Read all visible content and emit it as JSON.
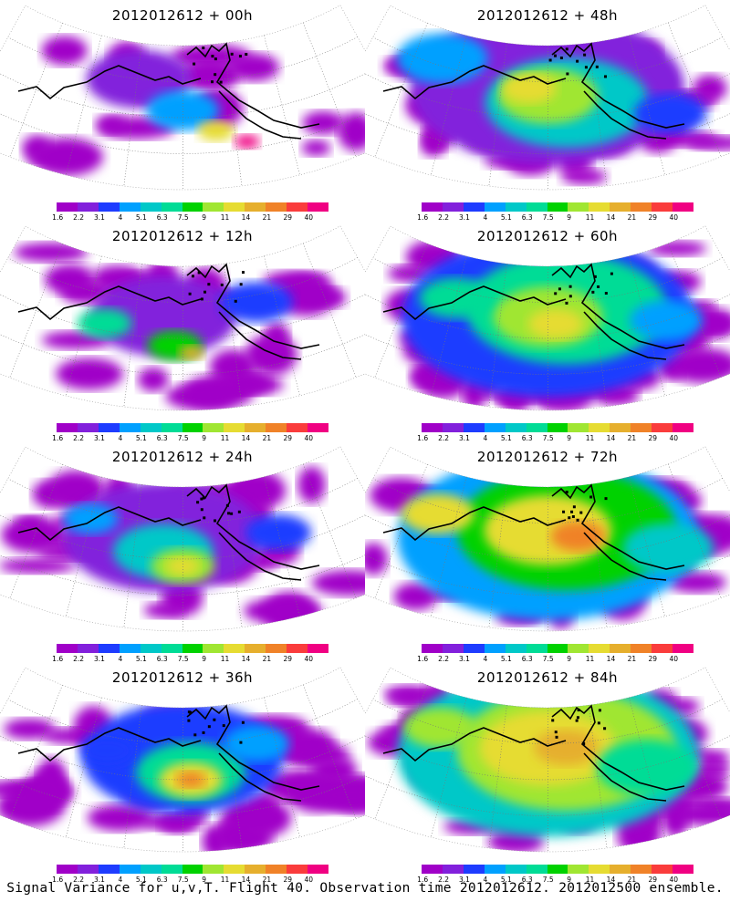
{
  "panels": [
    {
      "title": "2012012612 + 00h",
      "lead": "00h"
    },
    {
      "title": "2012012612 + 48h",
      "lead": "48h"
    },
    {
      "title": "2012012612 + 12h",
      "lead": "12h"
    },
    {
      "title": "2012012612 + 60h",
      "lead": "60h"
    },
    {
      "title": "2012012612 + 24h",
      "lead": "24h"
    },
    {
      "title": "2012012612 + 72h",
      "lead": "72h"
    },
    {
      "title": "2012012612 + 36h",
      "lead": "36h"
    },
    {
      "title": "2012012612 + 84h",
      "lead": "84h"
    }
  ],
  "colorbar": {
    "labels": [
      "1.6",
      "2.2",
      "3.1",
      "4",
      "5.1",
      "6.3",
      "7.5",
      "9",
      "11",
      "14",
      "21",
      "29",
      "40"
    ],
    "colors": [
      "#a000c8",
      "#8220dc",
      "#1e3cff",
      "#00a0ff",
      "#00c8c8",
      "#00dc96",
      "#00d200",
      "#a0e632",
      "#e6dc32",
      "#e6af2d",
      "#f08228",
      "#fa3c3c",
      "#f00082"
    ]
  },
  "caption": "Signal Variance for u,v,T. Flight 40. Observation time 2012012612. 2012012500 ensemble."
}
